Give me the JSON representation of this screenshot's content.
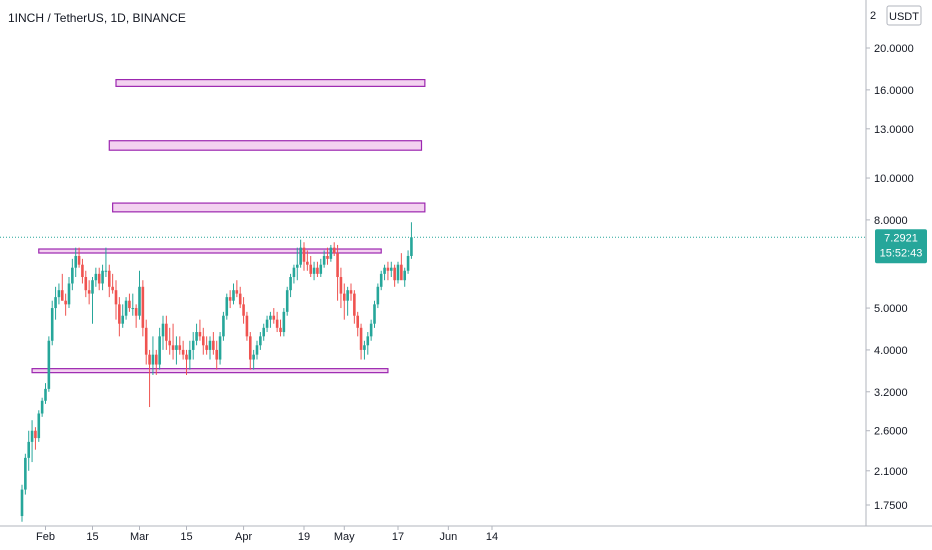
{
  "header": {
    "title": "1INCH / TetherUS, 1D, BINANCE"
  },
  "axis": {
    "currency": "USDT",
    "top_tick_partial": "2"
  },
  "price_tag": {
    "price": "7.2921",
    "countdown": "15:52:43"
  },
  "colors": {
    "up": "#26a69a",
    "down": "#ef5350",
    "zone_fill": "#f3d2f0",
    "zone_stroke": "#9c27b0",
    "last_line": "#26a69a",
    "axis_line": "#b2b5be"
  },
  "chart_data": {
    "type": "candlestick",
    "title": "1INCH / TetherUS, 1D, BINANCE",
    "y_scale": "log",
    "ylim": [
      1.55,
      24
    ],
    "y_ticks": [
      "20.0000",
      "16.0000",
      "13.0000",
      "10.0000",
      "8.0000",
      "5.0000",
      "4.0000",
      "3.2000",
      "2.6000",
      "2.1000",
      "1.7500"
    ],
    "x_ticks": [
      "Feb",
      "15",
      "Mar",
      "15",
      "Apr",
      "19",
      "May",
      "17",
      "Jun",
      "14"
    ],
    "last_price": 7.2921,
    "zones": [
      {
        "low": 16.3,
        "high": 16.9,
        "from": "2021-02-22",
        "to": "2021-05-25"
      },
      {
        "low": 11.6,
        "high": 12.2,
        "from": "2021-02-20",
        "to": "2021-05-24"
      },
      {
        "low": 8.35,
        "high": 8.75,
        "from": "2021-02-21",
        "to": "2021-05-25"
      },
      {
        "low": 6.75,
        "high": 6.85,
        "from": "2021-01-30",
        "to": "2021-05-12"
      },
      {
        "low": 3.55,
        "high": 3.62,
        "from": "2021-01-28",
        "to": "2021-05-14"
      }
    ],
    "series": [
      {
        "values": [
          [
            "2021-01-25",
            1.65,
            1.95,
            1.6,
            1.9
          ],
          [
            "2021-01-26",
            1.9,
            2.3,
            1.85,
            2.25
          ],
          [
            "2021-01-27",
            2.25,
            2.6,
            2.1,
            2.45
          ],
          [
            "2021-01-28",
            2.45,
            2.75,
            2.2,
            2.6
          ],
          [
            "2021-01-29",
            2.6,
            2.65,
            2.35,
            2.5
          ],
          [
            "2021-01-30",
            2.5,
            2.9,
            2.45,
            2.85
          ],
          [
            "2021-01-31",
            2.85,
            3.1,
            2.8,
            3.05
          ],
          [
            "2021-02-01",
            3.05,
            3.35,
            3.0,
            3.25
          ],
          [
            "2021-02-02",
            3.25,
            4.3,
            3.2,
            4.2
          ],
          [
            "2021-02-03",
            4.2,
            5.2,
            4.1,
            5.0
          ],
          [
            "2021-02-04",
            5.0,
            5.6,
            4.7,
            5.3
          ],
          [
            "2021-02-05",
            5.3,
            5.7,
            5.1,
            5.5
          ],
          [
            "2021-02-06",
            5.5,
            6.0,
            5.2,
            5.2
          ],
          [
            "2021-02-07",
            5.2,
            5.4,
            4.8,
            5.1
          ],
          [
            "2021-02-08",
            5.1,
            5.9,
            5.0,
            5.7
          ],
          [
            "2021-02-09",
            5.7,
            6.5,
            5.5,
            6.2
          ],
          [
            "2021-02-10",
            6.2,
            6.9,
            5.9,
            6.6
          ],
          [
            "2021-02-11",
            6.6,
            6.9,
            6.2,
            6.3
          ],
          [
            "2021-02-12",
            6.3,
            6.5,
            5.7,
            5.9
          ],
          [
            "2021-02-13",
            5.9,
            6.1,
            5.3,
            5.5
          ],
          [
            "2021-02-14",
            5.5,
            5.8,
            5.1,
            5.4
          ],
          [
            "2021-02-15",
            5.4,
            5.9,
            4.6,
            5.8
          ],
          [
            "2021-02-16",
            5.8,
            6.2,
            5.6,
            6.0
          ],
          [
            "2021-02-17",
            6.0,
            6.2,
            5.5,
            5.7
          ],
          [
            "2021-02-18",
            5.7,
            6.3,
            5.5,
            6.1
          ],
          [
            "2021-02-19",
            6.1,
            6.9,
            5.9,
            6.1
          ],
          [
            "2021-02-20",
            6.1,
            6.3,
            5.3,
            5.6
          ],
          [
            "2021-02-21",
            5.6,
            6.0,
            5.4,
            5.5
          ],
          [
            "2021-02-22",
            5.5,
            5.8,
            4.7,
            5.1
          ],
          [
            "2021-02-23",
            5.1,
            5.3,
            4.3,
            4.6
          ],
          [
            "2021-02-24",
            4.6,
            5.1,
            4.5,
            4.8
          ],
          [
            "2021-02-25",
            4.8,
            5.3,
            4.7,
            5.2
          ],
          [
            "2021-02-26",
            5.2,
            5.4,
            4.9,
            5.0
          ],
          [
            "2021-02-27",
            5.0,
            5.4,
            4.8,
            5.0
          ],
          [
            "2021-02-28",
            5.0,
            5.1,
            4.5,
            4.8
          ],
          [
            "2021-03-01",
            4.8,
            6.1,
            4.7,
            5.6
          ],
          [
            "2021-03-02",
            5.6,
            5.8,
            4.3,
            4.5
          ],
          [
            "2021-03-03",
            4.5,
            4.7,
            3.7,
            3.9
          ],
          [
            "2021-03-04",
            3.9,
            4.0,
            2.95,
            3.7
          ],
          [
            "2021-03-05",
            3.7,
            4.3,
            3.5,
            3.9
          ],
          [
            "2021-03-06",
            3.9,
            4.0,
            3.5,
            3.7
          ],
          [
            "2021-03-07",
            3.7,
            4.5,
            3.6,
            4.3
          ],
          [
            "2021-03-08",
            4.3,
            4.8,
            4.0,
            4.6
          ],
          [
            "2021-03-09",
            4.6,
            4.8,
            4.0,
            4.2
          ],
          [
            "2021-03-10",
            4.2,
            4.5,
            3.9,
            4.1
          ],
          [
            "2021-03-11",
            4.1,
            4.6,
            3.8,
            4.0
          ],
          [
            "2021-03-12",
            4.0,
            4.3,
            3.7,
            4.1
          ],
          [
            "2021-03-13",
            4.1,
            4.3,
            3.9,
            4.0
          ],
          [
            "2021-03-14",
            4.0,
            4.2,
            3.8,
            3.9
          ],
          [
            "2021-03-15",
            3.9,
            4.0,
            3.5,
            3.8
          ],
          [
            "2021-03-16",
            3.8,
            4.2,
            3.6,
            4.0
          ],
          [
            "2021-03-17",
            4.0,
            4.4,
            3.8,
            4.2
          ],
          [
            "2021-03-18",
            4.2,
            4.6,
            4.1,
            4.4
          ],
          [
            "2021-03-19",
            4.4,
            4.7,
            4.2,
            4.3
          ],
          [
            "2021-03-20",
            4.3,
            4.5,
            3.9,
            4.1
          ],
          [
            "2021-03-21",
            4.1,
            4.3,
            3.9,
            4.0
          ],
          [
            "2021-03-22",
            4.0,
            4.3,
            3.8,
            4.2
          ],
          [
            "2021-03-23",
            4.2,
            4.4,
            3.9,
            4.0
          ],
          [
            "2021-03-24",
            4.0,
            4.2,
            3.6,
            3.8
          ],
          [
            "2021-03-25",
            3.8,
            4.4,
            3.7,
            4.3
          ],
          [
            "2021-03-26",
            4.3,
            4.9,
            4.2,
            4.8
          ],
          [
            "2021-03-27",
            4.8,
            5.4,
            4.7,
            5.3
          ],
          [
            "2021-03-28",
            5.3,
            5.5,
            5.0,
            5.2
          ],
          [
            "2021-03-29",
            5.2,
            5.7,
            5.1,
            5.5
          ],
          [
            "2021-03-30",
            5.5,
            5.8,
            5.3,
            5.4
          ],
          [
            "2021-03-31",
            5.4,
            5.6,
            5.0,
            5.1
          ],
          [
            "2021-04-01",
            5.1,
            5.3,
            4.6,
            4.8
          ],
          [
            "2021-04-02",
            4.8,
            4.9,
            4.2,
            4.3
          ],
          [
            "2021-04-03",
            4.3,
            4.4,
            3.6,
            3.8
          ],
          [
            "2021-04-04",
            3.8,
            4.0,
            3.6,
            3.9
          ],
          [
            "2021-04-05",
            3.9,
            4.2,
            3.8,
            4.1
          ],
          [
            "2021-04-06",
            4.1,
            4.4,
            4.0,
            4.3
          ],
          [
            "2021-04-07",
            4.3,
            4.6,
            4.2,
            4.5
          ],
          [
            "2021-04-08",
            4.5,
            4.8,
            4.4,
            4.7
          ],
          [
            "2021-04-09",
            4.7,
            4.9,
            4.5,
            4.8
          ],
          [
            "2021-04-10",
            4.8,
            5.0,
            4.6,
            4.7
          ],
          [
            "2021-04-11",
            4.7,
            4.9,
            4.4,
            4.5
          ],
          [
            "2021-04-12",
            4.5,
            4.7,
            4.3,
            4.4
          ],
          [
            "2021-04-13",
            4.4,
            5.0,
            4.3,
            4.9
          ],
          [
            "2021-04-14",
            4.9,
            5.6,
            4.8,
            5.5
          ],
          [
            "2021-04-15",
            5.5,
            6.0,
            5.3,
            5.9
          ],
          [
            "2021-04-16",
            5.9,
            6.3,
            5.7,
            6.2
          ],
          [
            "2021-04-17",
            6.2,
            6.9,
            5.8,
            6.3
          ],
          [
            "2021-04-18",
            6.3,
            7.2,
            6.2,
            6.9
          ],
          [
            "2021-04-19",
            6.9,
            7.1,
            6.1,
            6.4
          ],
          [
            "2021-04-20",
            6.4,
            6.8,
            6.1,
            6.3
          ],
          [
            "2021-04-21",
            6.3,
            6.6,
            5.9,
            6.0
          ],
          [
            "2021-04-22",
            6.0,
            6.4,
            5.8,
            6.2
          ],
          [
            "2021-04-23",
            6.2,
            6.4,
            5.9,
            6.0
          ],
          [
            "2021-04-24",
            6.0,
            6.5,
            5.9,
            6.3
          ],
          [
            "2021-04-25",
            6.3,
            6.8,
            6.2,
            6.6
          ],
          [
            "2021-04-26",
            6.6,
            6.9,
            6.3,
            6.5
          ],
          [
            "2021-04-27",
            6.5,
            7.0,
            6.4,
            6.9
          ],
          [
            "2021-04-28",
            6.9,
            7.1,
            6.6,
            6.7
          ],
          [
            "2021-04-29",
            6.7,
            7.0,
            5.2,
            5.9
          ],
          [
            "2021-04-30",
            5.9,
            6.2,
            5.0,
            5.4
          ],
          [
            "2021-05-01",
            5.4,
            5.7,
            4.7,
            5.2
          ],
          [
            "2021-05-02",
            5.2,
            5.6,
            4.8,
            5.5
          ],
          [
            "2021-05-03",
            5.5,
            5.7,
            5.2,
            5.4
          ],
          [
            "2021-05-04",
            5.4,
            5.5,
            4.6,
            4.8
          ],
          [
            "2021-05-05",
            4.8,
            4.9,
            4.3,
            4.5
          ],
          [
            "2021-05-06",
            4.5,
            4.6,
            3.8,
            4.0
          ],
          [
            "2021-05-07",
            4.0,
            4.2,
            3.8,
            4.1
          ],
          [
            "2021-05-08",
            4.1,
            4.4,
            3.9,
            4.3
          ],
          [
            "2021-05-09",
            4.3,
            4.7,
            4.2,
            4.6
          ],
          [
            "2021-05-10",
            4.6,
            5.2,
            4.5,
            5.1
          ],
          [
            "2021-05-11",
            5.1,
            5.7,
            5.0,
            5.6
          ],
          [
            "2021-05-12",
            5.6,
            6.1,
            5.5,
            6.0
          ],
          [
            "2021-05-13",
            6.0,
            6.3,
            5.8,
            6.2
          ],
          [
            "2021-05-14",
            6.2,
            6.4,
            5.8,
            6.1
          ],
          [
            "2021-05-15",
            6.1,
            6.4,
            5.9,
            6.2
          ],
          [
            "2021-05-16",
            6.2,
            6.3,
            5.6,
            5.8
          ],
          [
            "2021-05-17",
            5.8,
            6.4,
            5.7,
            6.3
          ],
          [
            "2021-05-18",
            6.3,
            6.7,
            6.0,
            5.8
          ],
          [
            "2021-05-19",
            5.8,
            6.2,
            5.6,
            6.1
          ],
          [
            "2021-05-20",
            6.1,
            6.8,
            6.0,
            6.6
          ],
          [
            "2021-05-21",
            6.6,
            7.9,
            6.5,
            7.2921
          ]
        ]
      }
    ]
  }
}
